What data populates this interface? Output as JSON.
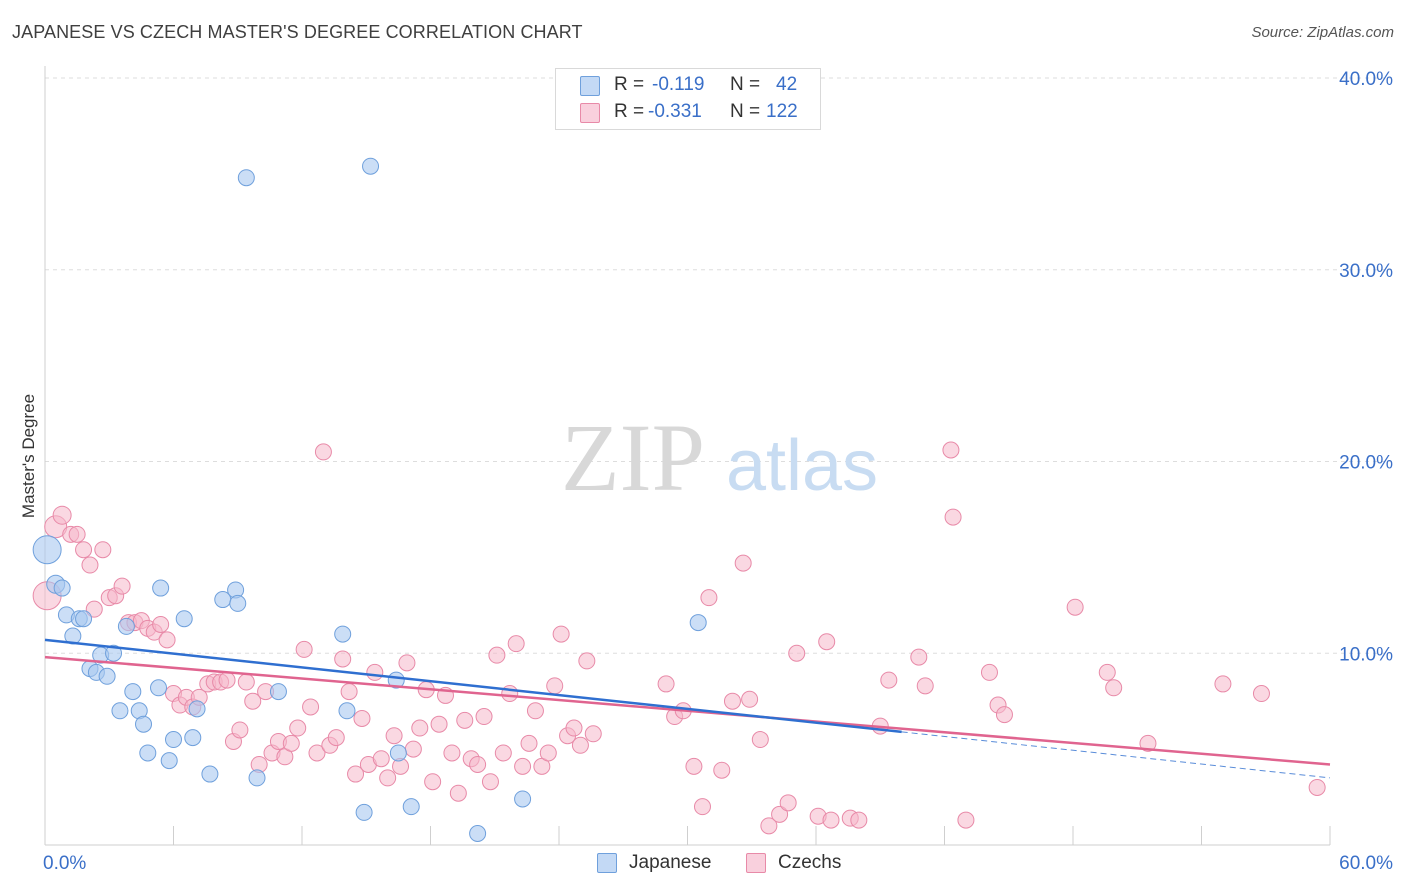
{
  "title": "JAPANESE VS CZECH MASTER'S DEGREE CORRELATION CHART",
  "source": "Source: ZipAtlas.com",
  "watermark": {
    "zip": "ZIP",
    "atlas": "atlas"
  },
  "legend": {
    "rows": [
      {
        "r_label": "R =",
        "r_value": "-0.119",
        "n_label": "N =",
        "n_value": "42",
        "color": "#a8c8f0"
      },
      {
        "r_label": "R =",
        "r_value": "-0.331",
        "n_label": "N =",
        "n_value": "122",
        "color": "#f5b8cb"
      }
    ]
  },
  "bottom_legend": [
    {
      "label": "Japanese",
      "color": "#a8c8f0"
    },
    {
      "label": "Czechs",
      "color": "#f5b8cb"
    }
  ],
  "colors": {
    "japanese_fill": "#a8c8f0",
    "japanese_stroke": "#6fa0dc",
    "japanese_line": "#2f6fd0",
    "czech_fill": "#f5b8cb",
    "czech_stroke": "#e88aa8",
    "czech_line": "#e0648f",
    "grid": "#dddddd",
    "tick_text": "#3a6fc8"
  },
  "chart_data": {
    "type": "scatter",
    "title": "JAPANESE VS CZECH MASTER'S DEGREE CORRELATION CHART",
    "xlabel": "",
    "ylabel": "Master's Degree",
    "xlim": [
      0,
      60
    ],
    "ylim": [
      0,
      40
    ],
    "x_tick_labels": [
      "0.0%",
      "60.0%"
    ],
    "y_ticks": [
      10,
      20,
      30,
      40
    ],
    "y_tick_labels": [
      "10.0%",
      "20.0%",
      "30.0%",
      "40.0%"
    ],
    "grid": true,
    "legend_position": "top-center",
    "series": [
      {
        "name": "Japanese",
        "r": -0.119,
        "n": 42,
        "trend": {
          "x": [
            0,
            40
          ],
          "y": [
            10.7,
            5.9
          ],
          "dashed_extension": {
            "x": [
              40,
              60
            ],
            "y": [
              5.9,
              3.5
            ]
          }
        },
        "points": [
          [
            0.1,
            15.4,
            14
          ],
          [
            0.5,
            13.6,
            9
          ],
          [
            0.8,
            13.4,
            8
          ],
          [
            1.0,
            12.0,
            8
          ],
          [
            1.3,
            10.9,
            8
          ],
          [
            1.6,
            11.8,
            8
          ],
          [
            1.8,
            11.8,
            8
          ],
          [
            2.1,
            9.2,
            8
          ],
          [
            2.4,
            9.0,
            8
          ],
          [
            2.6,
            9.9,
            8
          ],
          [
            2.9,
            8.8,
            8
          ],
          [
            3.2,
            10.0,
            8
          ],
          [
            3.5,
            7.0,
            8
          ],
          [
            3.8,
            11.4,
            8
          ],
          [
            4.1,
            8.0,
            8
          ],
          [
            4.4,
            7.0,
            8
          ],
          [
            4.6,
            6.3,
            8
          ],
          [
            4.8,
            4.8,
            8
          ],
          [
            5.3,
            8.2,
            8
          ],
          [
            5.4,
            13.4,
            8
          ],
          [
            5.8,
            4.4,
            8
          ],
          [
            6.0,
            5.5,
            8
          ],
          [
            6.5,
            11.8,
            8
          ],
          [
            6.9,
            5.6,
            8
          ],
          [
            7.1,
            7.1,
            8
          ],
          [
            7.7,
            3.7,
            8
          ],
          [
            8.3,
            12.8,
            8
          ],
          [
            8.9,
            13.3,
            8
          ],
          [
            9.0,
            12.6,
            8
          ],
          [
            9.4,
            34.8,
            8
          ],
          [
            9.9,
            3.5,
            8
          ],
          [
            10.9,
            8.0,
            8
          ],
          [
            13.9,
            11.0,
            8
          ],
          [
            14.1,
            7.0,
            8
          ],
          [
            14.9,
            1.7,
            8
          ],
          [
            15.2,
            35.4,
            8
          ],
          [
            16.4,
            8.6,
            8
          ],
          [
            16.5,
            4.8,
            8
          ],
          [
            17.1,
            2.0,
            8
          ],
          [
            20.2,
            0.6,
            8
          ],
          [
            22.3,
            2.4,
            8
          ],
          [
            30.5,
            11.6,
            8
          ]
        ]
      },
      {
        "name": "Czechs",
        "r": -0.331,
        "n": 122,
        "trend": {
          "x": [
            0,
            60
          ],
          "y": [
            9.8,
            4.2
          ]
        },
        "points": [
          [
            0.1,
            13.0,
            14
          ],
          [
            0.5,
            16.6,
            11
          ],
          [
            0.8,
            17.2,
            9
          ],
          [
            1.2,
            16.2,
            8
          ],
          [
            1.5,
            16.2,
            8
          ],
          [
            1.8,
            15.4,
            8
          ],
          [
            2.1,
            14.6,
            8
          ],
          [
            2.3,
            12.3,
            8
          ],
          [
            2.7,
            15.4,
            8
          ],
          [
            3.0,
            12.9,
            8
          ],
          [
            3.3,
            13.0,
            8
          ],
          [
            3.6,
            13.5,
            8
          ],
          [
            3.9,
            11.6,
            8
          ],
          [
            4.2,
            11.6,
            8
          ],
          [
            4.5,
            11.7,
            8
          ],
          [
            4.8,
            11.3,
            8
          ],
          [
            5.1,
            11.1,
            8
          ],
          [
            5.4,
            11.5,
            8
          ],
          [
            5.7,
            10.7,
            8
          ],
          [
            6.0,
            7.9,
            8
          ],
          [
            6.3,
            7.3,
            8
          ],
          [
            6.6,
            7.7,
            8
          ],
          [
            6.9,
            7.2,
            8
          ],
          [
            7.2,
            7.7,
            8
          ],
          [
            7.6,
            8.4,
            8
          ],
          [
            7.9,
            8.5,
            8
          ],
          [
            8.2,
            8.5,
            8
          ],
          [
            8.5,
            8.6,
            8
          ],
          [
            8.8,
            5.4,
            8
          ],
          [
            9.1,
            6.0,
            8
          ],
          [
            9.4,
            8.5,
            8
          ],
          [
            9.7,
            7.5,
            8
          ],
          [
            10.0,
            4.2,
            8
          ],
          [
            10.3,
            8.0,
            8
          ],
          [
            10.6,
            4.8,
            8
          ],
          [
            10.9,
            5.4,
            8
          ],
          [
            11.2,
            4.6,
            8
          ],
          [
            11.5,
            5.3,
            8
          ],
          [
            11.8,
            6.1,
            8
          ],
          [
            12.1,
            10.2,
            8
          ],
          [
            12.4,
            7.2,
            8
          ],
          [
            12.7,
            4.8,
            8
          ],
          [
            13.0,
            20.5,
            8
          ],
          [
            13.3,
            5.2,
            8
          ],
          [
            13.6,
            5.6,
            8
          ],
          [
            13.9,
            9.7,
            8
          ],
          [
            14.2,
            8.0,
            8
          ],
          [
            14.5,
            3.7,
            8
          ],
          [
            14.8,
            6.6,
            8
          ],
          [
            15.1,
            4.2,
            8
          ],
          [
            15.4,
            9.0,
            8
          ],
          [
            15.7,
            4.5,
            8
          ],
          [
            16.0,
            3.5,
            8
          ],
          [
            16.3,
            5.7,
            8
          ],
          [
            16.6,
            4.1,
            8
          ],
          [
            16.9,
            9.5,
            8
          ],
          [
            17.2,
            5.0,
            8
          ],
          [
            17.5,
            6.1,
            8
          ],
          [
            17.8,
            8.1,
            8
          ],
          [
            18.1,
            3.3,
            8
          ],
          [
            18.4,
            6.3,
            8
          ],
          [
            18.7,
            7.8,
            8
          ],
          [
            19.0,
            4.8,
            8
          ],
          [
            19.3,
            2.7,
            8
          ],
          [
            19.6,
            6.5,
            8
          ],
          [
            19.9,
            4.5,
            8
          ],
          [
            20.2,
            4.2,
            8
          ],
          [
            20.5,
            6.7,
            8
          ],
          [
            20.8,
            3.3,
            8
          ],
          [
            21.1,
            9.9,
            8
          ],
          [
            21.4,
            4.8,
            8
          ],
          [
            21.7,
            7.9,
            8
          ],
          [
            22.0,
            10.5,
            8
          ],
          [
            22.3,
            4.1,
            8
          ],
          [
            22.6,
            5.3,
            8
          ],
          [
            22.9,
            7.0,
            8
          ],
          [
            23.2,
            4.1,
            8
          ],
          [
            23.5,
            4.8,
            8
          ],
          [
            23.8,
            8.3,
            8
          ],
          [
            24.1,
            11.0,
            8
          ],
          [
            24.4,
            5.7,
            8
          ],
          [
            24.7,
            6.1,
            8
          ],
          [
            25.0,
            5.2,
            8
          ],
          [
            25.3,
            9.6,
            8
          ],
          [
            25.6,
            5.8,
            8
          ],
          [
            29.0,
            8.4,
            8
          ],
          [
            29.4,
            6.7,
            8
          ],
          [
            29.8,
            7.0,
            8
          ],
          [
            30.3,
            4.1,
            8
          ],
          [
            30.7,
            2.0,
            8
          ],
          [
            31.0,
            12.9,
            8
          ],
          [
            31.6,
            3.9,
            8
          ],
          [
            32.1,
            7.5,
            8
          ],
          [
            32.6,
            14.7,
            8
          ],
          [
            32.9,
            7.6,
            8
          ],
          [
            33.4,
            5.5,
            8
          ],
          [
            33.8,
            1.0,
            8
          ],
          [
            34.3,
            1.6,
            8
          ],
          [
            34.7,
            2.2,
            8
          ],
          [
            35.1,
            10.0,
            8
          ],
          [
            36.1,
            1.5,
            8
          ],
          [
            36.5,
            10.6,
            8
          ],
          [
            36.7,
            1.3,
            8
          ],
          [
            37.6,
            1.4,
            8
          ],
          [
            38.0,
            1.3,
            8
          ],
          [
            39.0,
            6.2,
            8
          ],
          [
            39.4,
            8.6,
            8
          ],
          [
            40.8,
            9.8,
            8
          ],
          [
            41.1,
            8.3,
            8
          ],
          [
            42.3,
            20.6,
            8
          ],
          [
            42.4,
            17.1,
            8
          ],
          [
            43.0,
            1.3,
            8
          ],
          [
            44.1,
            9.0,
            8
          ],
          [
            44.5,
            7.3,
            8
          ],
          [
            44.8,
            6.8,
            8
          ],
          [
            48.1,
            12.4,
            8
          ],
          [
            49.6,
            9.0,
            8
          ],
          [
            49.9,
            8.2,
            8
          ],
          [
            51.5,
            5.3,
            8
          ],
          [
            55.0,
            8.4,
            8
          ],
          [
            56.8,
            7.9,
            8
          ],
          [
            59.4,
            3.0,
            8
          ]
        ]
      }
    ]
  }
}
